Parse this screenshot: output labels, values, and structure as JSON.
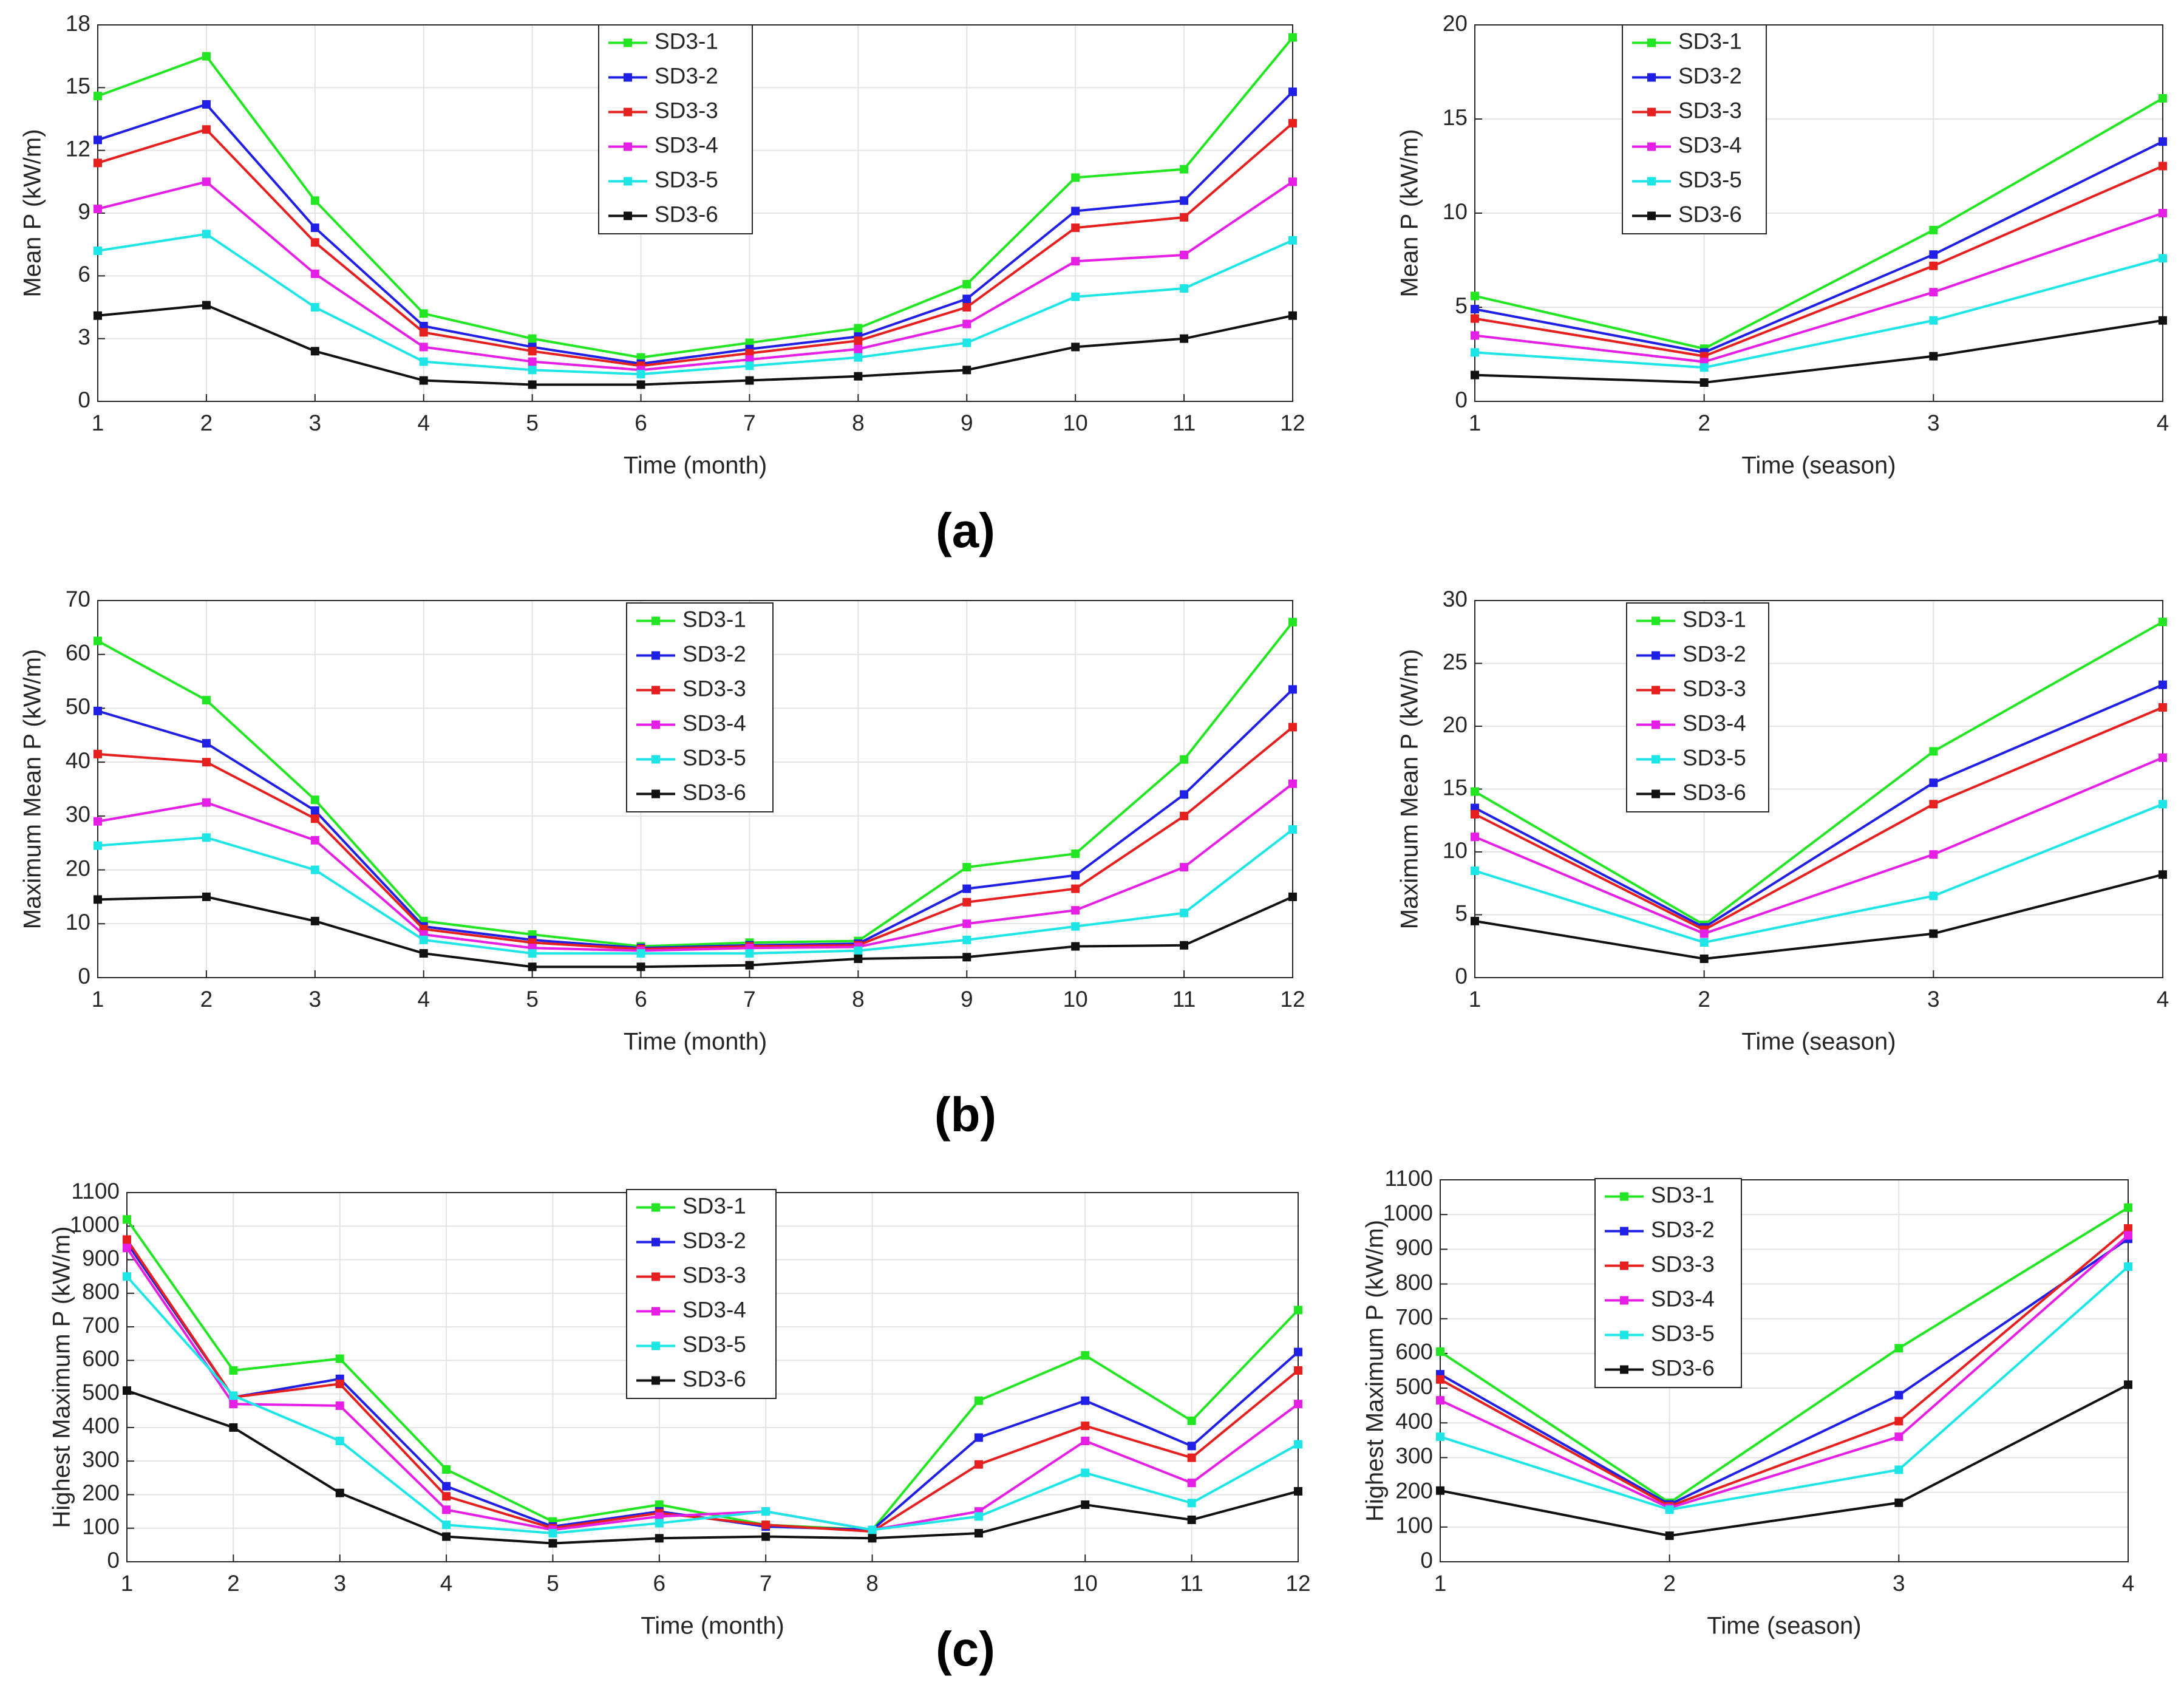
{
  "panel_labels": [
    "(a)",
    "(b)",
    "(c)"
  ],
  "chart_data": [
    {
      "type": "line",
      "grid": true,
      "xlabel": "Time (month)",
      "ylabel": "Mean P (kW/m)",
      "x": [
        1,
        2,
        3,
        4,
        5,
        6,
        7,
        8,
        9,
        10,
        11,
        12
      ],
      "xlim": [
        1,
        12
      ],
      "xticks": [
        1,
        2,
        3,
        4,
        5,
        6,
        7,
        8,
        9,
        10,
        11,
        12
      ],
      "ylim": [
        0,
        18
      ],
      "yticks": [
        0,
        3,
        6,
        9,
        12,
        15,
        18
      ],
      "series": [
        {
          "name": "SD3-1",
          "color": "#22e622",
          "values": [
            14.6,
            16.5,
            9.6,
            4.2,
            3.0,
            2.1,
            2.8,
            3.5,
            5.6,
            10.7,
            11.1,
            17.4
          ]
        },
        {
          "name": "SD3-2",
          "color": "#1f1fe6",
          "values": [
            12.5,
            14.2,
            8.3,
            3.6,
            2.6,
            1.8,
            2.5,
            3.1,
            4.9,
            9.1,
            9.6,
            14.8
          ]
        },
        {
          "name": "SD3-3",
          "color": "#e61f1f",
          "values": [
            11.4,
            13.0,
            7.6,
            3.3,
            2.4,
            1.7,
            2.3,
            2.9,
            4.5,
            8.3,
            8.8,
            13.3
          ]
        },
        {
          "name": "SD3-4",
          "color": "#e61fe6",
          "values": [
            9.2,
            10.5,
            6.1,
            2.6,
            1.9,
            1.5,
            2.0,
            2.5,
            3.7,
            6.7,
            7.0,
            10.5
          ]
        },
        {
          "name": "SD3-5",
          "color": "#1fe6e6",
          "values": [
            7.2,
            8.0,
            4.5,
            1.9,
            1.5,
            1.3,
            1.7,
            2.1,
            2.8,
            5.0,
            5.4,
            7.7
          ]
        },
        {
          "name": "SD3-6",
          "color": "#111111",
          "values": [
            4.1,
            4.6,
            2.4,
            1.0,
            0.8,
            0.8,
            1.0,
            1.2,
            1.5,
            2.6,
            3.0,
            4.1
          ]
        }
      ]
    },
    {
      "type": "line",
      "grid": true,
      "xlabel": "Time (season)",
      "ylabel": "Mean P (kW/m)",
      "x": [
        1,
        2,
        3,
        4
      ],
      "xlim": [
        1,
        4
      ],
      "xticks": [
        1,
        2,
        3,
        4
      ],
      "ylim": [
        0,
        20
      ],
      "yticks": [
        0,
        5,
        10,
        15,
        20
      ],
      "series": [
        {
          "name": "SD3-1",
          "color": "#22e622",
          "values": [
            5.6,
            2.8,
            9.1,
            16.1
          ]
        },
        {
          "name": "SD3-2",
          "color": "#1f1fe6",
          "values": [
            4.9,
            2.6,
            7.8,
            13.8
          ]
        },
        {
          "name": "SD3-3",
          "color": "#e61f1f",
          "values": [
            4.4,
            2.4,
            7.2,
            12.5
          ]
        },
        {
          "name": "SD3-4",
          "color": "#e61fe6",
          "values": [
            3.5,
            2.1,
            5.8,
            10.0
          ]
        },
        {
          "name": "SD3-5",
          "color": "#1fe6e6",
          "values": [
            2.6,
            1.8,
            4.3,
            7.6
          ]
        },
        {
          "name": "SD3-6",
          "color": "#111111",
          "values": [
            1.4,
            1.0,
            2.4,
            4.3
          ]
        }
      ]
    },
    {
      "type": "line",
      "grid": true,
      "xlabel": "Time (month)",
      "ylabel": "Maximum Mean P (kW/m)",
      "x": [
        1,
        2,
        3,
        4,
        5,
        6,
        7,
        8,
        9,
        10,
        11,
        12
      ],
      "xlim": [
        1,
        12
      ],
      "xticks": [
        1,
        2,
        3,
        4,
        5,
        6,
        7,
        8,
        9,
        10,
        11,
        12
      ],
      "ylim": [
        0,
        70
      ],
      "yticks": [
        0,
        10,
        20,
        30,
        40,
        50,
        60,
        70
      ],
      "series": [
        {
          "name": "SD3-1",
          "color": "#22e622",
          "values": [
            62.5,
            51.5,
            33,
            10.5,
            8,
            5.8,
            6.5,
            6.8,
            20.5,
            23,
            40.5,
            66
          ]
        },
        {
          "name": "SD3-2",
          "color": "#1f1fe6",
          "values": [
            49.5,
            43.5,
            31,
            9.5,
            7,
            5.5,
            6,
            6.3,
            16.5,
            19,
            34,
            53.5
          ]
        },
        {
          "name": "SD3-3",
          "color": "#e61f1f",
          "values": [
            41.5,
            40,
            29.5,
            9,
            6.5,
            5.3,
            5.8,
            6,
            14,
            16.5,
            30,
            46.5
          ]
        },
        {
          "name": "SD3-4",
          "color": "#e61fe6",
          "values": [
            29,
            32.5,
            25.5,
            8,
            5.5,
            5,
            5.5,
            5.7,
            10,
            12.5,
            20.5,
            36
          ]
        },
        {
          "name": "SD3-5",
          "color": "#1fe6e6",
          "values": [
            24.5,
            26,
            20,
            7,
            4.5,
            4.5,
            4.5,
            5,
            7,
            9.5,
            12,
            27.5
          ]
        },
        {
          "name": "SD3-6",
          "color": "#111111",
          "values": [
            14.5,
            15,
            10.5,
            4.5,
            2,
            2,
            2.3,
            3.5,
            3.8,
            5.8,
            6,
            15
          ]
        }
      ]
    },
    {
      "type": "line",
      "grid": true,
      "xlabel": "Time (season)",
      "ylabel": "Maximum Mean P (kW/m)",
      "x": [
        1,
        2,
        3,
        4
      ],
      "xlim": [
        1,
        4
      ],
      "xticks": [
        1,
        2,
        3,
        4
      ],
      "ylim": [
        0,
        30
      ],
      "yticks": [
        0,
        5,
        10,
        15,
        20,
        25,
        30
      ],
      "series": [
        {
          "name": "SD3-1",
          "color": "#22e622",
          "values": [
            14.8,
            4.2,
            18,
            28.3
          ]
        },
        {
          "name": "SD3-2",
          "color": "#1f1fe6",
          "values": [
            13.5,
            4,
            15.5,
            23.3
          ]
        },
        {
          "name": "SD3-3",
          "color": "#e61f1f",
          "values": [
            13,
            3.8,
            13.8,
            21.5
          ]
        },
        {
          "name": "SD3-4",
          "color": "#e61fe6",
          "values": [
            11.2,
            3.5,
            9.8,
            17.5
          ]
        },
        {
          "name": "SD3-5",
          "color": "#1fe6e6",
          "values": [
            8.5,
            2.8,
            6.5,
            13.8
          ]
        },
        {
          "name": "SD3-6",
          "color": "#111111",
          "values": [
            4.5,
            1.5,
            3.5,
            8.2
          ]
        }
      ]
    },
    {
      "type": "line",
      "grid": true,
      "xlabel": "Time (month)",
      "ylabel": "Highest Maximum P (kW/m)",
      "x": [
        1,
        2,
        3,
        4,
        5,
        6,
        7,
        8,
        9,
        10,
        11,
        12
      ],
      "xlim": [
        1,
        12
      ],
      "xticks": [
        1,
        2,
        3,
        4,
        5,
        6,
        7,
        8,
        10,
        11,
        12
      ],
      "ylim": [
        0,
        1100
      ],
      "yticks": [
        0,
        100,
        200,
        300,
        400,
        500,
        600,
        700,
        800,
        900,
        1000,
        1100
      ],
      "series": [
        {
          "name": "SD3-1",
          "color": "#22e622",
          "values": [
            1020,
            570,
            605,
            275,
            120,
            170,
            110,
            95,
            480,
            615,
            420,
            750
          ]
        },
        {
          "name": "SD3-2",
          "color": "#1f1fe6",
          "values": [
            950,
            490,
            545,
            225,
            105,
            150,
            105,
            95,
            370,
            480,
            345,
            625
          ]
        },
        {
          "name": "SD3-3",
          "color": "#e61f1f",
          "values": [
            960,
            490,
            530,
            195,
            100,
            145,
            110,
            90,
            290,
            405,
            310,
            570
          ]
        },
        {
          "name": "SD3-4",
          "color": "#e61fe6",
          "values": [
            935,
            470,
            465,
            155,
            95,
            135,
            150,
            95,
            150,
            360,
            235,
            470
          ]
        },
        {
          "name": "SD3-5",
          "color": "#1fe6e6",
          "values": [
            850,
            495,
            360,
            110,
            85,
            115,
            150,
            95,
            135,
            265,
            175,
            350
          ]
        },
        {
          "name": "SD3-6",
          "color": "#111111",
          "values": [
            510,
            400,
            205,
            75,
            55,
            70,
            75,
            70,
            85,
            170,
            125,
            210
          ]
        }
      ]
    },
    {
      "type": "line",
      "grid": true,
      "xlabel": "Time (season)",
      "ylabel": "Highest Maximum P (kW/m)",
      "x": [
        1,
        2,
        3,
        4
      ],
      "xlim": [
        1,
        4
      ],
      "xticks": [
        1,
        2,
        3,
        4
      ],
      "ylim": [
        0,
        1100
      ],
      "yticks": [
        0,
        100,
        200,
        300,
        400,
        500,
        600,
        700,
        800,
        900,
        1000,
        1100
      ],
      "series": [
        {
          "name": "SD3-1",
          "color": "#22e622",
          "values": [
            605,
            170,
            615,
            1020
          ]
        },
        {
          "name": "SD3-2",
          "color": "#1f1fe6",
          "values": [
            540,
            165,
            480,
            930
          ]
        },
        {
          "name": "SD3-3",
          "color": "#e61f1f",
          "values": [
            525,
            160,
            405,
            960
          ]
        },
        {
          "name": "SD3-4",
          "color": "#e61fe6",
          "values": [
            465,
            155,
            360,
            940
          ]
        },
        {
          "name": "SD3-5",
          "color": "#1fe6e6",
          "values": [
            360,
            150,
            265,
            850
          ]
        },
        {
          "name": "SD3-6",
          "color": "#111111",
          "values": [
            205,
            75,
            170,
            510
          ]
        }
      ]
    }
  ]
}
